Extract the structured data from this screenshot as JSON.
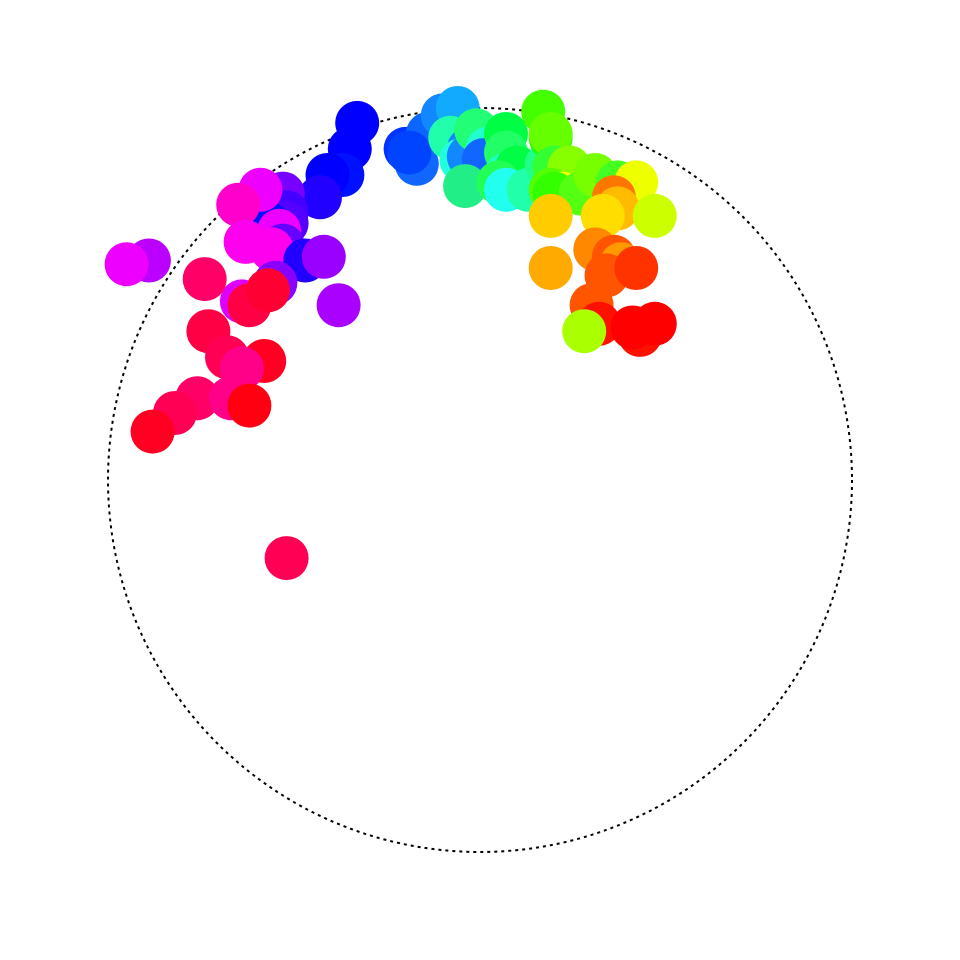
{
  "chart_data": {
    "type": "scatter",
    "title": "",
    "xlabel": "",
    "ylabel": "",
    "grid": false,
    "legend": "none",
    "xlim": [
      -1.25,
      1.25
    ],
    "ylim": [
      -1.25,
      1.25
    ],
    "reference_circle": {
      "radius": 1.0,
      "style": "dotted",
      "color": "#000000"
    },
    "points": [
      {
        "x": -0.33,
        "y": 0.96,
        "color": "#0000ff"
      },
      {
        "x": -0.2,
        "y": 0.89,
        "color": "#0033ff"
      },
      {
        "x": -0.14,
        "y": 0.93,
        "color": "#0a66ff"
      },
      {
        "x": -0.1,
        "y": 0.98,
        "color": "#1188ff"
      },
      {
        "x": -0.06,
        "y": 1.0,
        "color": "#11aaff"
      },
      {
        "x": -0.17,
        "y": 0.85,
        "color": "#1166ff"
      },
      {
        "x": -0.35,
        "y": 0.89,
        "color": "#0000ff"
      },
      {
        "x": -0.37,
        "y": 0.82,
        "color": "#0011ff"
      },
      {
        "x": -0.19,
        "y": 0.88,
        "color": "#0044ff"
      },
      {
        "x": -0.08,
        "y": 0.92,
        "color": "#22ffaa"
      },
      {
        "x": -0.03,
        "y": 0.89,
        "color": "#1188ff"
      },
      {
        "x": -0.05,
        "y": 0.86,
        "color": "#22ffdd"
      },
      {
        "x": -0.03,
        "y": 0.87,
        "color": "#1188ff"
      },
      {
        "x": -0.01,
        "y": 0.94,
        "color": "#22ff77"
      },
      {
        "x": 0.02,
        "y": 0.89,
        "color": "#22ffcc"
      },
      {
        "x": 0.01,
        "y": 0.86,
        "color": "#1166ff"
      },
      {
        "x": -0.04,
        "y": 0.79,
        "color": "#22ee88"
      },
      {
        "x": 0.07,
        "y": 0.93,
        "color": "#00ff44"
      },
      {
        "x": 0.07,
        "y": 0.88,
        "color": "#22ff66"
      },
      {
        "x": 0.07,
        "y": 0.82,
        "color": "#22ffcc"
      },
      {
        "x": 0.1,
        "y": 0.84,
        "color": "#00ff44"
      },
      {
        "x": 0.05,
        "y": 0.8,
        "color": "#22ff55"
      },
      {
        "x": 0.07,
        "y": 0.78,
        "color": "#22ffee"
      },
      {
        "x": 0.13,
        "y": 0.78,
        "color": "#22ffaa"
      },
      {
        "x": 0.18,
        "y": 0.85,
        "color": "#22ff99"
      },
      {
        "x": 0.18,
        "y": 0.85,
        "color": "#22ff88"
      },
      {
        "x": 0.17,
        "y": 0.99,
        "color": "#44ff00"
      },
      {
        "x": 0.19,
        "y": 0.92,
        "color": "#22ff00"
      },
      {
        "x": 0.19,
        "y": 0.93,
        "color": "#66ff00"
      },
      {
        "x": 0.2,
        "y": 0.84,
        "color": "#33ff33"
      },
      {
        "x": 0.24,
        "y": 0.84,
        "color": "#88ff00"
      },
      {
        "x": 0.19,
        "y": 0.78,
        "color": "#55ff00"
      },
      {
        "x": 0.22,
        "y": 0.77,
        "color": "#ffff00"
      },
      {
        "x": 0.2,
        "y": 0.77,
        "color": "#33ff00"
      },
      {
        "x": 0.27,
        "y": 0.77,
        "color": "#55ff11"
      },
      {
        "x": 0.31,
        "y": 0.82,
        "color": "#77ff00"
      },
      {
        "x": 0.37,
        "y": 0.8,
        "color": "#44ff22"
      },
      {
        "x": 0.42,
        "y": 0.8,
        "color": "#eeff00"
      },
      {
        "x": 0.36,
        "y": 0.76,
        "color": "#ff7700"
      },
      {
        "x": 0.37,
        "y": 0.73,
        "color": "#ffbb00"
      },
      {
        "x": 0.47,
        "y": 0.71,
        "color": "#ccff00"
      },
      {
        "x": 0.19,
        "y": 0.71,
        "color": "#ffcc00"
      },
      {
        "x": 0.33,
        "y": 0.71,
        "color": "#ffdd00"
      },
      {
        "x": 0.31,
        "y": 0.62,
        "color": "#ff8800"
      },
      {
        "x": 0.36,
        "y": 0.6,
        "color": "#ff5500"
      },
      {
        "x": 0.38,
        "y": 0.58,
        "color": "#ff9900"
      },
      {
        "x": 0.34,
        "y": 0.55,
        "color": "#ff5500"
      },
      {
        "x": 0.42,
        "y": 0.57,
        "color": "#ff3300"
      },
      {
        "x": 0.19,
        "y": 0.57,
        "color": "#ffaa00"
      },
      {
        "x": 0.3,
        "y": 0.47,
        "color": "#ff5500"
      },
      {
        "x": 0.32,
        "y": 0.42,
        "color": "#ff1100"
      },
      {
        "x": 0.28,
        "y": 0.4,
        "color": "#aaff00"
      },
      {
        "x": 0.43,
        "y": 0.39,
        "color": "#ff1100"
      },
      {
        "x": 0.41,
        "y": 0.41,
        "color": "#ff0000"
      },
      {
        "x": 0.47,
        "y": 0.42,
        "color": "#ff0000"
      },
      {
        "x": -0.41,
        "y": 0.82,
        "color": "#0000ff"
      },
      {
        "x": -0.43,
        "y": 0.76,
        "color": "#2200ff"
      },
      {
        "x": -0.53,
        "y": 0.77,
        "color": "#7700ff"
      },
      {
        "x": -0.52,
        "y": 0.72,
        "color": "#4400ff"
      },
      {
        "x": -0.52,
        "y": 0.69,
        "color": "#5500ff"
      },
      {
        "x": -0.57,
        "y": 0.69,
        "color": "#0011ff"
      },
      {
        "x": -0.54,
        "y": 0.67,
        "color": "#ee00ff"
      },
      {
        "x": -0.59,
        "y": 0.78,
        "color": "#ee00ff"
      },
      {
        "x": -0.65,
        "y": 0.74,
        "color": "#ff00cc"
      },
      {
        "x": -0.53,
        "y": 0.63,
        "color": "#6600ff"
      },
      {
        "x": -0.63,
        "y": 0.64,
        "color": "#ff00ee"
      },
      {
        "x": -0.56,
        "y": 0.62,
        "color": "#ff00ee"
      },
      {
        "x": -0.47,
        "y": 0.59,
        "color": "#2200ff"
      },
      {
        "x": -0.42,
        "y": 0.6,
        "color": "#9900ff"
      },
      {
        "x": -0.89,
        "y": 0.59,
        "color": "#bb00ff"
      },
      {
        "x": -0.95,
        "y": 0.58,
        "color": "#ee00ff"
      },
      {
        "x": -0.55,
        "y": 0.53,
        "color": "#8800ff"
      },
      {
        "x": -0.64,
        "y": 0.48,
        "color": "#dd00ff"
      },
      {
        "x": -0.62,
        "y": 0.47,
        "color": "#ff0044"
      },
      {
        "x": -0.74,
        "y": 0.54,
        "color": "#ff0066"
      },
      {
        "x": -0.57,
        "y": 0.51,
        "color": "#ff0033"
      },
      {
        "x": -0.38,
        "y": 0.47,
        "color": "#aa00ff"
      },
      {
        "x": -0.73,
        "y": 0.4,
        "color": "#ff0044"
      },
      {
        "x": -0.68,
        "y": 0.33,
        "color": "#ff0055"
      },
      {
        "x": -0.58,
        "y": 0.32,
        "color": "#ff0022"
      },
      {
        "x": -0.64,
        "y": 0.3,
        "color": "#ff0088"
      },
      {
        "x": -0.76,
        "y": 0.22,
        "color": "#ff0066"
      },
      {
        "x": -0.67,
        "y": 0.22,
        "color": "#ff0088"
      },
      {
        "x": -0.62,
        "y": 0.2,
        "color": "#ff0011"
      },
      {
        "x": -0.82,
        "y": 0.18,
        "color": "#ff0055"
      },
      {
        "x": -0.88,
        "y": 0.13,
        "color": "#ff0022"
      },
      {
        "x": -0.52,
        "y": -0.21,
        "color": "#ff0055"
      }
    ]
  }
}
